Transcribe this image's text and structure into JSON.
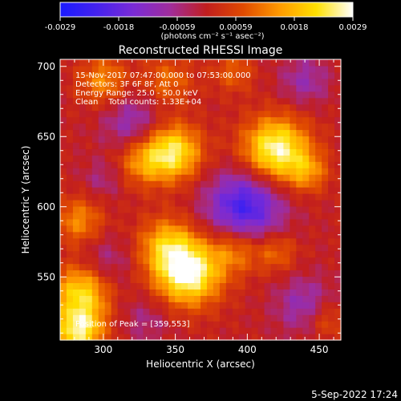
{
  "colorbar": {
    "tick_labels": [
      "-0.0029",
      "-0.0018",
      "-0.00059",
      "0.00059",
      "0.0018",
      "0.0029"
    ],
    "units": "(photons cm⁻² s⁻¹ asec⁻²)",
    "colormap": [
      "#1a1aff",
      "#4422ee",
      "#7a2bd6",
      "#a02d9c",
      "#c21e1e",
      "#e04a00",
      "#ff9a00",
      "#ffe000",
      "#ffffff"
    ]
  },
  "chart_data": {
    "type": "heatmap",
    "title": "Reconstructed RHESSI Image",
    "xlabel": "Heliocentric X (arcsec)",
    "ylabel": "Heliocentric Y (arcsec)",
    "xlim": [
      270,
      465
    ],
    "ylim": [
      505,
      705
    ],
    "x_ticks": [
      300,
      350,
      400,
      450
    ],
    "y_ticks": [
      550,
      600,
      650,
      700
    ],
    "value_range": [
      -0.0029,
      0.0029
    ],
    "info_lines": [
      "15-Nov-2017 07:47:00.000 to 07:53:00.000",
      "Detectors: 3F 6F 8F, Att 0",
      "Energy Range: 25.0 - 50.0 keV",
      "Clean    Total counts: 1.33E+04"
    ],
    "peak_label": "Position of Peak = [359,553]",
    "peak": [
      359,
      553
    ],
    "sources": [
      {
        "x": 359,
        "y": 553,
        "amp": 1.0,
        "sigma": 16
      },
      {
        "x": 344,
        "y": 573,
        "amp": 0.55,
        "sigma": 14
      },
      {
        "x": 392,
        "y": 570,
        "amp": 0.45,
        "sigma": 12
      },
      {
        "x": 420,
        "y": 568,
        "amp": 0.35,
        "sigma": 10
      },
      {
        "x": 348,
        "y": 639,
        "amp": 0.85,
        "sigma": 14
      },
      {
        "x": 326,
        "y": 632,
        "amp": 0.4,
        "sigma": 12
      },
      {
        "x": 420,
        "y": 641,
        "amp": 0.95,
        "sigma": 16
      },
      {
        "x": 442,
        "y": 625,
        "amp": 0.4,
        "sigma": 10
      },
      {
        "x": 285,
        "y": 540,
        "amp": 0.75,
        "sigma": 14
      },
      {
        "x": 283,
        "y": 590,
        "amp": 0.45,
        "sigma": 12
      },
      {
        "x": 283,
        "y": 512,
        "amp": 0.85,
        "sigma": 12
      },
      {
        "x": 300,
        "y": 690,
        "amp": 0.45,
        "sigma": 12
      },
      {
        "x": 345,
        "y": 690,
        "amp": 0.35,
        "sigma": 12
      },
      {
        "x": 390,
        "y": 696,
        "amp": 0.3,
        "sigma": 10
      },
      {
        "x": 455,
        "y": 520,
        "amp": 0.3,
        "sigma": 10
      },
      {
        "x": 398,
        "y": 600,
        "amp": -0.75,
        "sigma": 18
      },
      {
        "x": 320,
        "y": 660,
        "amp": -0.35,
        "sigma": 14
      },
      {
        "x": 300,
        "y": 560,
        "amp": -0.25,
        "sigma": 14
      },
      {
        "x": 440,
        "y": 530,
        "amp": -0.35,
        "sigma": 14
      },
      {
        "x": 330,
        "y": 520,
        "amp": -0.2,
        "sigma": 12
      },
      {
        "x": 440,
        "y": 690,
        "amp": -0.3,
        "sigma": 12
      },
      {
        "x": 300,
        "y": 620,
        "amp": -0.2,
        "sigma": 10
      }
    ]
  },
  "footer": {
    "date": "5-Sep-2022 17:24"
  }
}
